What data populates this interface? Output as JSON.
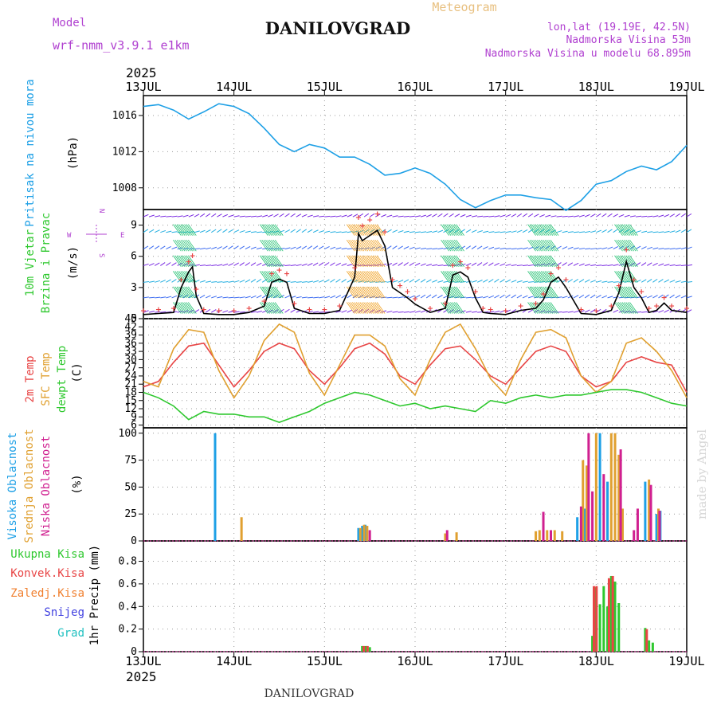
{
  "header": {
    "station_title": "DANILOVGRAD",
    "meteogram_label": "Meteogram",
    "model_label": "Model",
    "model_name": "wrf-nmm_v3.9.1 e1km",
    "location_line": "lon,lat (19.19E, 42.5N)",
    "elevation_line": "Nadmorska Visina 53m",
    "model_elevation_line": "Nadmorska Visina u modelu 68.895m",
    "year_top": "2025",
    "year_bottom": "2025",
    "footer_title": "DANILOVGRAD",
    "credit": "made by Angel"
  },
  "colors": {
    "pressure": "#1ea0e6",
    "temp2m": "#e84545",
    "sfc_temp": "#e0a030",
    "dewpoint": "#2ec82e",
    "wind_speed": "#000000",
    "gust": "#e84545",
    "high_cloud": "#1ea0e6",
    "mid_cloud": "#e0a030",
    "low_cloud": "#d02090",
    "total_precip": "#2ec82e",
    "conv_precip": "#e84545",
    "frozen_precip": "#f08030",
    "snow": "#4040e0",
    "hail": "#20c0c0",
    "label_purple": "#b040d0",
    "label_orange": "#e8c080"
  },
  "panel_labels": {
    "pressure": [
      "Pritisak na nivou mora",
      "(hPa)"
    ],
    "wind": [
      "10m Vjetar",
      "Brzina i Pravac",
      "(m/s)"
    ],
    "temp": [
      "2m Temp",
      "SFC Temp",
      "dewpt Temp",
      "(C)"
    ],
    "cloud": [
      "Visoka Oblacnost",
      "Srednja Oblacnost",
      "Niska Oblacnost",
      "(%)"
    ],
    "precip": [
      "Ukupna Kisa",
      "Konvek.Kisa",
      "Zaledj.Kisa",
      "Snijeg",
      "Grad",
      "1hr Precip (mm)"
    ]
  },
  "compass": {
    "n": "N",
    "s": "S",
    "e": "E",
    "w": "W"
  },
  "chart_data": [
    {
      "type": "line",
      "name": "pressure",
      "xlim": [
        0,
        144
      ],
      "x_ticks": [
        "13JUL",
        "14JUL",
        "15JUL",
        "16JUL",
        "17JUL",
        "18JUL",
        "19JUL"
      ],
      "ylim": [
        1005.6,
        1018.2
      ],
      "y_ticks": [
        1008,
        1012,
        1016
      ],
      "grid": true,
      "series": [
        {
          "x": [
            0,
            4,
            8,
            12,
            16,
            20,
            24,
            28,
            32,
            36,
            40,
            44,
            48,
            52,
            56,
            60,
            64,
            68,
            72,
            76,
            80,
            84,
            88,
            92,
            96,
            100,
            104,
            108,
            112,
            116,
            120,
            124,
            128,
            132,
            136,
            140,
            144
          ],
          "values": [
            1017.0,
            1017.2,
            1016.6,
            1015.6,
            1016.4,
            1017.3,
            1017.0,
            1016.2,
            1014.6,
            1012.8,
            1012.0,
            1012.8,
            1012.4,
            1011.4,
            1011.4,
            1010.6,
            1009.4,
            1009.6,
            1010.2,
            1009.6,
            1008.4,
            1006.7,
            1005.8,
            1006.6,
            1007.2,
            1007.2,
            1006.9,
            1006.7,
            1005.5,
            1006.6,
            1008.4,
            1008.8,
            1009.8,
            1010.4,
            1010.0,
            1010.9,
            1012.7
          ]
        }
      ]
    },
    {
      "type": "line",
      "name": "wind",
      "xlim": [
        0,
        144
      ],
      "ylim": [
        0,
        10.5
      ],
      "y_ticks": [
        0,
        3,
        6,
        9
      ],
      "grid": true,
      "series": [
        {
          "name": "wind speed",
          "x": [
            0,
            4,
            8,
            10,
            12,
            13,
            14,
            16,
            20,
            24,
            28,
            32,
            34,
            36,
            38,
            40,
            44,
            48,
            52,
            56,
            57,
            58,
            60,
            62,
            64,
            66,
            68,
            70,
            72,
            76,
            80,
            82,
            84,
            86,
            88,
            90,
            92,
            96,
            100,
            104,
            106,
            108,
            110,
            112,
            116,
            120,
            124,
            126,
            128,
            130,
            132,
            134,
            136,
            138,
            140,
            144
          ],
          "values": [
            0.4,
            0.5,
            0.6,
            3.0,
            4.5,
            5.0,
            2.2,
            0.5,
            0.4,
            0.4,
            0.6,
            1.2,
            3.5,
            3.8,
            3.5,
            1.0,
            0.5,
            0.5,
            0.8,
            4.0,
            8.2,
            7.5,
            8.0,
            8.5,
            7.0,
            3.0,
            2.5,
            2.0,
            1.4,
            0.6,
            1.0,
            4.2,
            4.5,
            4.0,
            2.0,
            0.6,
            0.5,
            0.4,
            0.8,
            1.0,
            1.8,
            3.5,
            4.0,
            3.0,
            0.5,
            0.4,
            0.8,
            2.5,
            5.5,
            3.0,
            2.0,
            0.6,
            0.8,
            1.5,
            0.8,
            0.6
          ]
        }
      ]
    },
    {
      "type": "line",
      "name": "temperature",
      "xlim": [
        0,
        144
      ],
      "ylim": [
        5,
        45
      ],
      "y_ticks": [
        6,
        9,
        12,
        15,
        18,
        21,
        24,
        27,
        30,
        33,
        36,
        39,
        42,
        45
      ],
      "grid": true,
      "series": [
        {
          "name": "2m Temp",
          "x": [
            0,
            4,
            8,
            12,
            16,
            20,
            24,
            28,
            32,
            36,
            40,
            44,
            48,
            52,
            56,
            60,
            64,
            68,
            72,
            76,
            80,
            84,
            88,
            92,
            96,
            100,
            104,
            108,
            112,
            116,
            120,
            124,
            128,
            132,
            136,
            140,
            144
          ],
          "values": [
            20,
            22,
            29,
            35,
            36,
            28,
            20,
            26,
            33,
            36,
            34,
            26,
            21,
            27,
            34,
            36,
            32,
            24,
            21,
            28,
            34,
            35,
            30,
            24,
            21,
            27,
            33,
            35,
            33,
            24,
            20,
            22,
            29,
            31,
            29,
            28,
            18
          ]
        },
        {
          "name": "SFC Temp",
          "x": [
            0,
            4,
            8,
            12,
            16,
            20,
            24,
            28,
            32,
            36,
            40,
            44,
            48,
            52,
            56,
            60,
            64,
            68,
            72,
            76,
            80,
            84,
            88,
            92,
            96,
            100,
            104,
            108,
            112,
            116,
            120,
            124,
            128,
            132,
            136,
            140,
            144
          ],
          "values": [
            22,
            20,
            34,
            41,
            40,
            26,
            16,
            24,
            37,
            43,
            40,
            25,
            17,
            28,
            39,
            39,
            35,
            23,
            17,
            30,
            40,
            43,
            34,
            23,
            17,
            30,
            40,
            41,
            38,
            24,
            18,
            22,
            36,
            38,
            33,
            26,
            16
          ]
        },
        {
          "name": "dewpt Temp",
          "x": [
            0,
            4,
            8,
            12,
            16,
            20,
            24,
            28,
            32,
            36,
            40,
            44,
            48,
            52,
            56,
            60,
            64,
            68,
            72,
            76,
            80,
            84,
            88,
            92,
            96,
            100,
            104,
            108,
            112,
            116,
            120,
            124,
            128,
            132,
            136,
            140,
            144
          ],
          "values": [
            18,
            16,
            13,
            8,
            11,
            10,
            10,
            9,
            9,
            7,
            9,
            11,
            14,
            16,
            18,
            17,
            15,
            13,
            14,
            12,
            13,
            12,
            11,
            15,
            14,
            16,
            17,
            16,
            17,
            17,
            18,
            19,
            19,
            18,
            16,
            14,
            13
          ]
        }
      ]
    },
    {
      "type": "bar",
      "name": "cloud_cover",
      "xlim": [
        0,
        144
      ],
      "ylim": [
        0,
        105
      ],
      "y_ticks": [
        0,
        25,
        50,
        75,
        100
      ],
      "grid": true,
      "series": [
        {
          "name": "Visoka Oblacnost",
          "x": [
            19,
            57,
            58,
            58.8,
            115,
            117,
            121,
            123,
            133,
            136,
            137
          ],
          "values": [
            100,
            12,
            14,
            15,
            22,
            30,
            100,
            55,
            55,
            25,
            28
          ]
        },
        {
          "name": "Srednja Oblacnost",
          "x": [
            26,
            57.5,
            58.5,
            59.3,
            80,
            83,
            104,
            105,
            107,
            109,
            111,
            116.5,
            117.5,
            120,
            124,
            125,
            126,
            127,
            134,
            136.5
          ],
          "values": [
            22,
            12,
            15,
            14,
            7,
            8,
            9,
            10,
            10,
            10,
            9,
            75,
            70,
            100,
            100,
            100,
            80,
            30,
            57,
            30
          ]
        },
        {
          "name": "Niska Oblacnost",
          "x": [
            60,
            80.5,
            106,
            108,
            116,
            118,
            119,
            122,
            126.5,
            130,
            131,
            134.5,
            136.8
          ],
          "values": [
            10,
            10,
            27,
            10,
            32,
            100,
            46,
            62,
            85,
            10,
            30,
            52,
            28
          ]
        }
      ]
    },
    {
      "type": "bar",
      "name": "precipitation",
      "xlim": [
        0,
        144
      ],
      "ylim": [
        0,
        0.98
      ],
      "y_ticks": [
        0,
        0.2,
        0.4,
        0.6,
        0.8
      ],
      "grid": true,
      "series": [
        {
          "name": "Ukupna Kisa",
          "x": [
            58,
            59,
            60,
            119,
            119.7,
            121,
            122,
            123,
            124,
            125,
            126,
            133,
            134,
            135
          ],
          "values": [
            0.05,
            0.05,
            0.04,
            0.14,
            0.57,
            0.42,
            0.58,
            0.4,
            0.67,
            0.62,
            0.43,
            0.21,
            0.1,
            0.08
          ]
        },
        {
          "name": "Konvek.Kisa",
          "x": [
            58.4,
            59.4,
            119.4,
            120.1,
            123.4,
            124.4,
            133.4
          ],
          "values": [
            0.05,
            0.05,
            0.58,
            0.58,
            0.65,
            0.67,
            0.2
          ]
        }
      ]
    }
  ]
}
